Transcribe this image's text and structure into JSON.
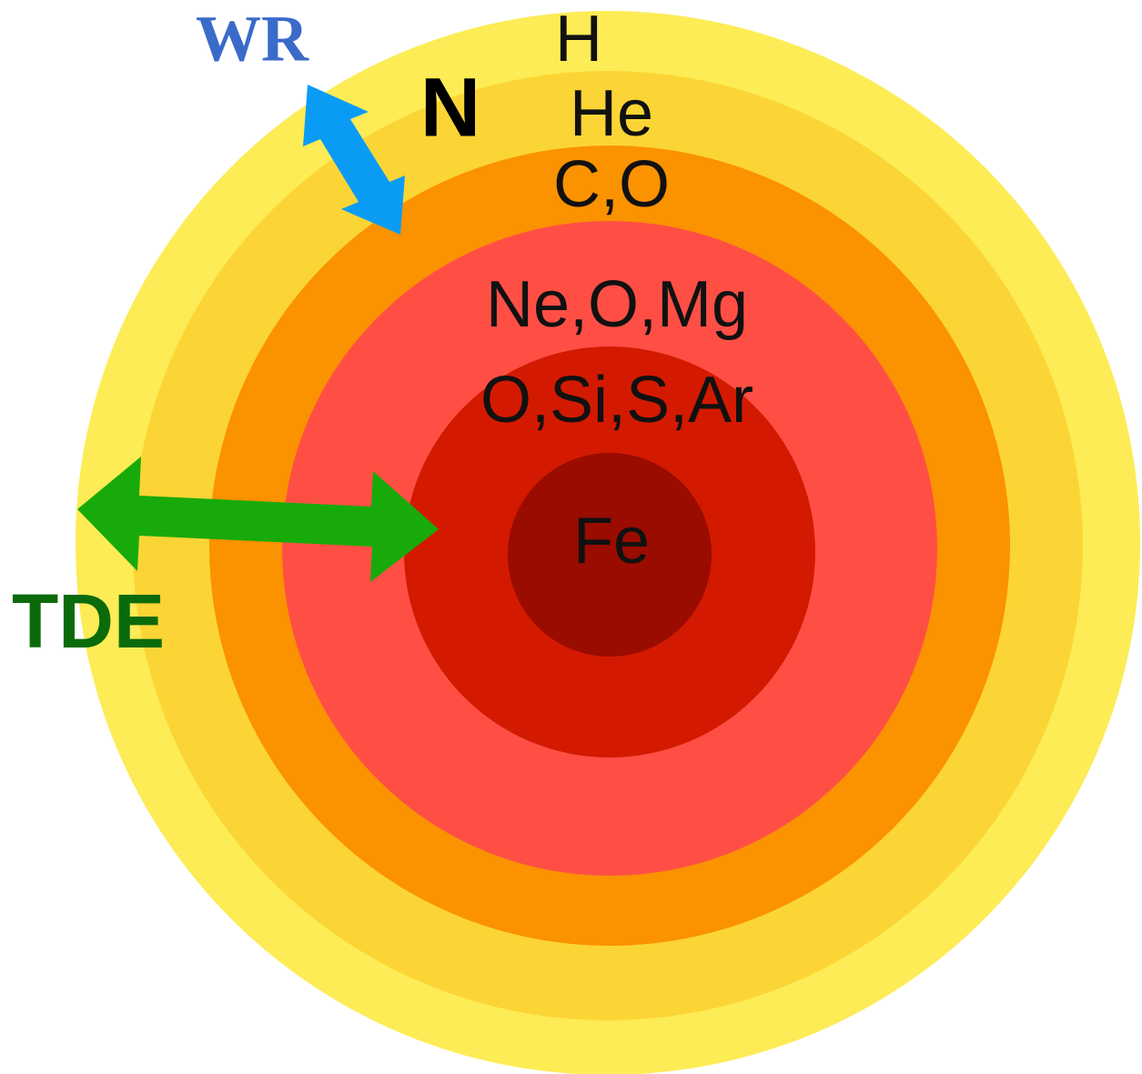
{
  "layers": [
    {
      "label": "H"
    },
    {
      "label": "He"
    },
    {
      "label": "C,O"
    },
    {
      "label": "Ne,O,Mg"
    },
    {
      "label": "O,Si,S,Ar"
    },
    {
      "label": "Fe"
    }
  ],
  "annotations": {
    "wr": "WR",
    "n": "N",
    "tde": "TDE"
  }
}
